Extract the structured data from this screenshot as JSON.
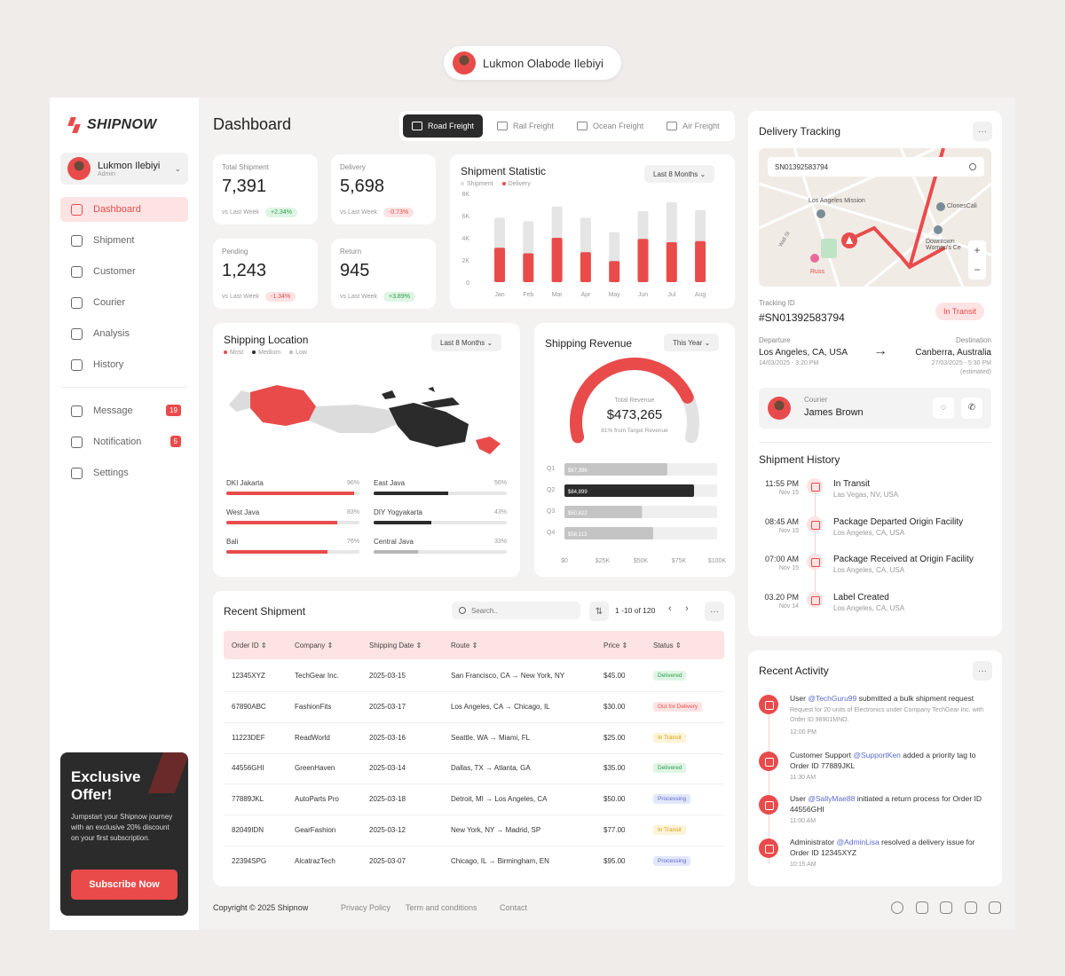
{
  "profile_chip": {
    "name": "Lukmon Olabode Ilebiyi"
  },
  "brand": {
    "name": "SHIPNOW",
    "accent": "#e94b4b",
    "dark": "#2b2b2b"
  },
  "user": {
    "name": "Lukmon Ilebiyi",
    "role": "Admin"
  },
  "nav": [
    {
      "label": "Dashboard",
      "icon": "grid-icon",
      "active": true
    },
    {
      "label": "Shipment",
      "icon": "truck-icon"
    },
    {
      "label": "Customer",
      "icon": "users-icon"
    },
    {
      "label": "Courier",
      "icon": "id-card-icon"
    },
    {
      "label": "Analysis",
      "icon": "chart-icon"
    },
    {
      "label": "History",
      "icon": "clock-icon"
    }
  ],
  "nav2": [
    {
      "label": "Message",
      "icon": "message-icon",
      "badge": "19"
    },
    {
      "label": "Notification",
      "icon": "bell-icon",
      "badge": "5"
    },
    {
      "label": "Settings",
      "icon": "gear-icon"
    }
  ],
  "offer": {
    "title_1": "Exclusive",
    "title_2": "Offer!",
    "text": "Jumpstart your Shipnow journey with an exclusive 20% discount on your first subscription.",
    "button": "Subscribe Now"
  },
  "page_title": "Dashboard",
  "freight_tabs": [
    {
      "label": "Road Freight",
      "active": true
    },
    {
      "label": "Rail Freight"
    },
    {
      "label": "Ocean Freight"
    },
    {
      "label": "Air Freight"
    }
  ],
  "stats": [
    {
      "label": "Total Shipment",
      "value": "7,391",
      "compare": "vs Last Week",
      "change": "+2.34%",
      "trend": "up"
    },
    {
      "label": "Delivery",
      "value": "5,698",
      "compare": "vs Last Week",
      "change": "-0.73%",
      "trend": "down"
    },
    {
      "label": "Pending",
      "value": "1,243",
      "compare": "vs Last Week",
      "change": "-1.34%",
      "trend": "down"
    },
    {
      "label": "Return",
      "value": "945",
      "compare": "vs Last Week",
      "change": "+3.89%",
      "trend": "up"
    }
  ],
  "shipment_statistic": {
    "title": "Shipment Statistic",
    "period": "Last 8 Months",
    "legend": [
      "Shipment",
      "Delivery"
    ],
    "yticks": [
      "8K",
      "6K",
      "4K",
      "2K",
      "0"
    ]
  },
  "shipping_location": {
    "title": "Shipping Location",
    "period": "Last 8 Months",
    "legend": [
      "Most",
      "Medium",
      "Low"
    ],
    "regions": [
      {
        "name": "DKI Jakarta",
        "value": "96%",
        "pct": 96,
        "color": "#e94b4b"
      },
      {
        "name": "East Java",
        "value": "56%",
        "pct": 56,
        "color": "#2b2b2b"
      },
      {
        "name": "West Java",
        "value": "83%",
        "pct": 83,
        "color": "#e94b4b"
      },
      {
        "name": "DIY Yogyakarta",
        "value": "43%",
        "pct": 43,
        "color": "#2b2b2b"
      },
      {
        "name": "Bali",
        "value": "76%",
        "pct": 76,
        "color": "#e94b4b"
      },
      {
        "name": "Central Java",
        "value": "33%",
        "pct": 33,
        "color": "#b5b5b5"
      }
    ]
  },
  "shipping_revenue": {
    "title": "Shipping Revenue",
    "period": "This Year",
    "gauge_label": "Total Revenue",
    "gauge_value": "$473,265",
    "gauge_note": "81% from Target Revenue",
    "gauge_pct": 81,
    "xticks": [
      "$0",
      "$25K",
      "$50K",
      "$75K",
      "$100K"
    ]
  },
  "chart_data": [
    {
      "type": "bar",
      "title": "Shipment Statistic",
      "categories": [
        "Jan",
        "Feb",
        "Mar",
        "Apr",
        "May",
        "Jun",
        "Jul",
        "Aug"
      ],
      "series": [
        {
          "name": "Shipment",
          "values": [
            5800,
            5500,
            6800,
            5800,
            4500,
            6400,
            7200,
            6500
          ]
        },
        {
          "name": "Delivery",
          "values": [
            3100,
            2600,
            4000,
            2700,
            1900,
            3900,
            3600,
            3700
          ]
        }
      ],
      "ylim": [
        0,
        8000
      ]
    },
    {
      "type": "bar",
      "orientation": "horizontal",
      "title": "Shipping Revenue",
      "categories": [
        "Q1",
        "Q2",
        "Q3",
        "Q4"
      ],
      "values": [
        67396,
        84899,
        50822,
        58113
      ],
      "labels": [
        "$67,396",
        "$84,899",
        "$50,822",
        "$58,113"
      ],
      "xlim": [
        0,
        100000
      ]
    }
  ],
  "recent_shipment": {
    "title": "Recent Shipment",
    "search_placeholder": "Search..",
    "pagination": "1 -10 of 120",
    "columns": [
      "Order ID",
      "Company",
      "Shipping Date",
      "Route",
      "Price",
      "Status"
    ],
    "rows": [
      {
        "id": "12345XYZ",
        "company": "TechGear Inc.",
        "date": "2025-03-15",
        "route": "San Francisco, CA → New York, NY",
        "price": "$45.00",
        "status": "Delivered",
        "cls": "s-del"
      },
      {
        "id": "67890ABC",
        "company": "FashionFits",
        "date": "2025-03-17",
        "route": "Los Angeles, CA → Chicago, IL",
        "price": "$30.00",
        "status": "Out for Delivery",
        "cls": "s-out"
      },
      {
        "id": "11223DEF",
        "company": "ReadWorld",
        "date": "2025-03-16",
        "route": "Seattle, WA → Miami, FL",
        "price": "$25.00",
        "status": "In Transit",
        "cls": "s-tr"
      },
      {
        "id": "44556GHI",
        "company": "GreenHaven",
        "date": "2025-03-14",
        "route": "Dallas, TX → Atlanta, GA",
        "price": "$35.00",
        "status": "Delivered",
        "cls": "s-del"
      },
      {
        "id": "77889JKL",
        "company": "AutoParts Pro",
        "date": "2025-03-18",
        "route": "Detroit, MI → Los Angeles, CA",
        "price": "$50.00",
        "status": "Processing",
        "cls": "s-pr"
      },
      {
        "id": "82049IDN",
        "company": "GearFashion",
        "date": "2025-03-12",
        "route": "New York, NY → Madrid, SP",
        "price": "$77.00",
        "status": "In Transit",
        "cls": "s-tr"
      },
      {
        "id": "22394SPG",
        "company": "AlcatrazTech",
        "date": "2025-03-07",
        "route": "Chicago, IL → Birmingham, EN",
        "price": "$95.00",
        "status": "Processing",
        "cls": "s-pr"
      }
    ]
  },
  "tracking": {
    "title": "Delivery Tracking",
    "search_value": "SN01392583794",
    "map_labels": [
      "Los Angeles Mission",
      "ClonesCali",
      "Downtown Women's Ce",
      "Russ",
      "Wall St"
    ],
    "tracking_label": "Tracking ID",
    "tracking_id": "#SN01392583794",
    "status": "In Transit",
    "departure_label": "Departure",
    "departure": "Los Angeles, CA, USA",
    "departure_time": "14/03/2025 - 3:20 PM",
    "destination_label": "Destination",
    "destination": "Canberra, Australia",
    "destination_time": "27/03/2025 - 5:30 PM",
    "estimated": "(estimated)",
    "courier_label": "Courier",
    "courier_name": "James Brown"
  },
  "history": {
    "title": "Shipment History",
    "items": [
      {
        "time": "11:55 PM",
        "date": "Nov 15",
        "title": "In Transit",
        "place": "Las Vegas, NV, USA"
      },
      {
        "time": "08:45 AM",
        "date": "Nov 15",
        "title": "Package Departed Origin Facility",
        "place": "Los Angeles, CA, USA"
      },
      {
        "time": "07:00 AM",
        "date": "Nov 15",
        "title": "Package Received at Origin Facility",
        "place": "Los Angeles, CA, USA"
      },
      {
        "time": "03.20 PM",
        "date": "Nov 14",
        "title": "Label Created",
        "place": "Los Angeles, CA, USA"
      }
    ]
  },
  "activity": {
    "title": "Recent Activity",
    "items": [
      {
        "pre": "User ",
        "tag": "@TechGuru99",
        "post": " submitted a bulk shipment request",
        "detail": "Request for 20 units of Electronics under Company TechGear Inc. with Order ID 98901MNO.",
        "time": "12:00 PM"
      },
      {
        "pre": "Customer Support ",
        "tag": "@SupportKen",
        "post": " added a priority tag to Order ID 77889JKL",
        "detail": "",
        "time": "11:30 AM"
      },
      {
        "pre": "User ",
        "tag": "@SallyMae88",
        "post": " initiated a return process for Order ID 44556GHI",
        "detail": "",
        "time": "11:00 AM"
      },
      {
        "pre": "Administrator ",
        "tag": "@AdminLisa",
        "post": " resolved a delivery issue for Order ID 12345XYZ",
        "detail": "",
        "time": "10:15 AM"
      }
    ]
  },
  "footer": {
    "copyright": "Copyright © 2025 Shipnow",
    "links": [
      "Privacy Policy",
      "Term and conditions",
      "Contact"
    ],
    "social": [
      "facebook-icon",
      "x-icon",
      "instagram-icon",
      "youtube-icon",
      "linkedin-icon"
    ]
  }
}
